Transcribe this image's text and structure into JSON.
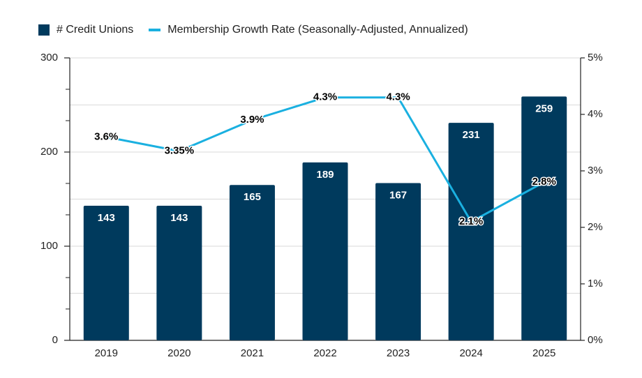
{
  "chart_data": {
    "type": "bar",
    "categories": [
      "2019",
      "2020",
      "2021",
      "2022",
      "2023",
      "2024",
      "2025"
    ],
    "series": [
      {
        "name": "# Credit Unions",
        "type": "bar",
        "axis": "left",
        "values": [
          143,
          143,
          165,
          189,
          167,
          231,
          259
        ],
        "labels": [
          "143",
          "143",
          "165",
          "189",
          "167",
          "231",
          "259"
        ]
      },
      {
        "name": "Membership Growth Rate (Seasonally-Adjusted, Annualized)",
        "type": "line",
        "axis": "right",
        "values": [
          3.6,
          3.35,
          3.9,
          4.3,
          4.3,
          2.1,
          2.8
        ],
        "labels": [
          "3.6%",
          "3.35%",
          "3.9%",
          "4.3%",
          "4.3%",
          "2.1%",
          "2.8%"
        ]
      }
    ],
    "y_left": {
      "lim": [
        0,
        300
      ],
      "ticks": [
        "0",
        "100",
        "200",
        "300"
      ],
      "tick_values": [
        0,
        100,
        200,
        300
      ]
    },
    "y_right": {
      "lim": [
        0,
        5
      ],
      "ticks": [
        "0%",
        "1%",
        "2%",
        "3%",
        "4%",
        "5%"
      ],
      "tick_values": [
        0,
        1,
        2,
        3,
        4,
        5
      ]
    },
    "legend_position": "top-left",
    "grid": true,
    "colors": {
      "bar": "#003a5d",
      "line": "#1ab0e0",
      "grid": "#d9d9d9",
      "axis": "#222222"
    }
  }
}
